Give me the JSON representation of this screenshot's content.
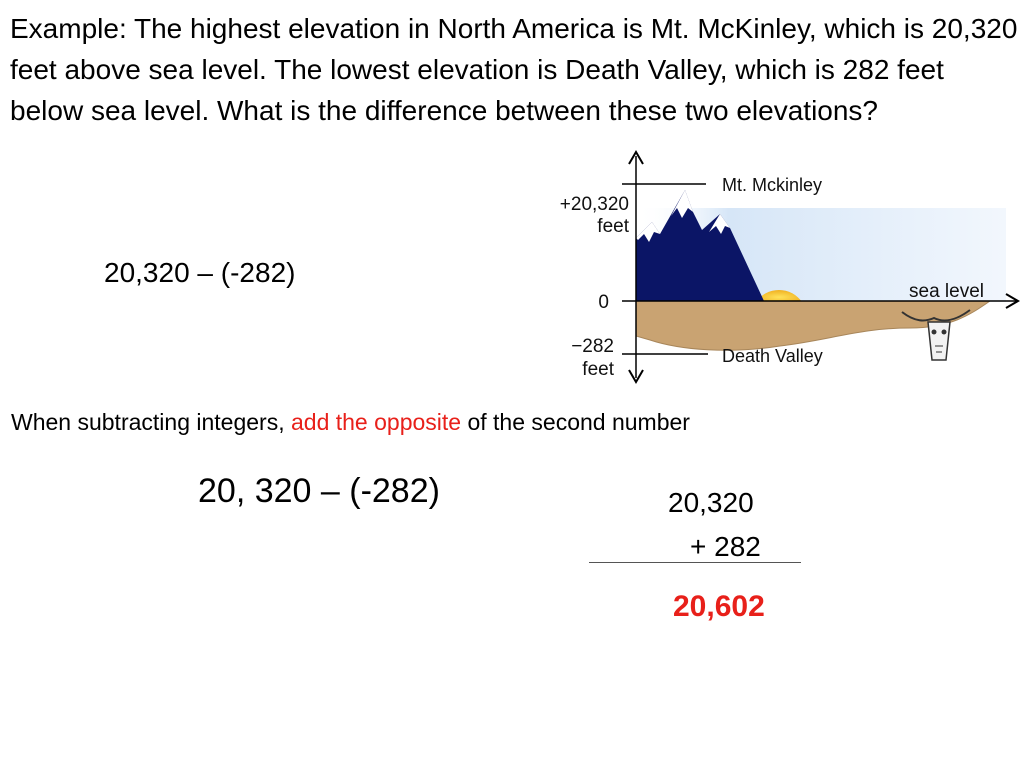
{
  "problem_text": "Example: The highest elevation in North America is Mt. McKinley, which is 20,320 feet above sea level. The lowest elevation is Death Valley, which is 282 feet below sea level. What is the difference between these two elevations?",
  "diagram": {
    "peak_label": "Mt. Mckinley",
    "top_value": "+20,320",
    "top_unit": "feet",
    "zero_label": "0",
    "sea_level_label": "sea level",
    "bottom_value": "−282",
    "bottom_unit": "feet",
    "valley_label": "Death Valley"
  },
  "expression_1": "20,320 – (-282)",
  "rule": {
    "before": "When subtracting integers, ",
    "highlight": "add the opposite",
    "after": " of the second number"
  },
  "expression_2": "20, 320 – (-282)",
  "addition": {
    "addend_1": "20,320",
    "addend_2": "+ 282",
    "result": "20,602"
  },
  "colors": {
    "highlight": "#e8201a",
    "mountain": "#0b1566",
    "ground": "#c9a372",
    "sun": "#f5c518",
    "sky": "#d6e6f7"
  }
}
